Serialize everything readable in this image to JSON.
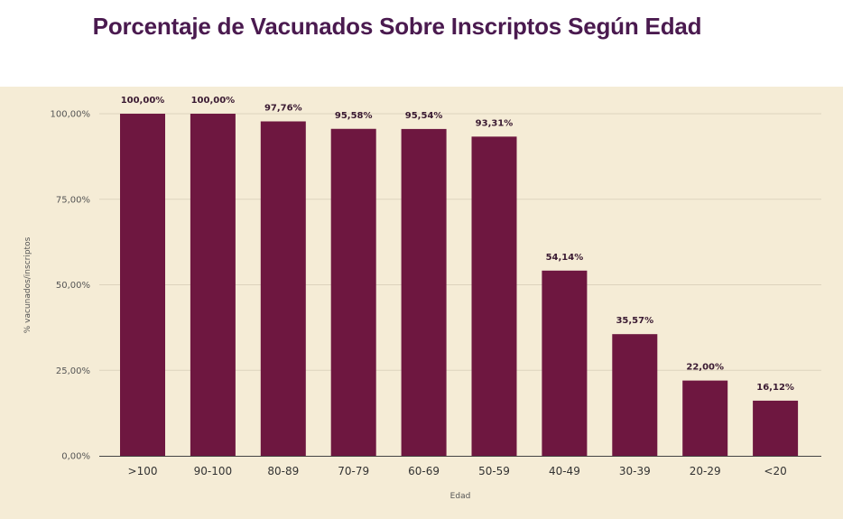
{
  "chart_data": {
    "type": "bar",
    "title": "Porcentaje de Vacunados Sobre Inscriptos Según Edad",
    "xlabel": "Edad",
    "ylabel": "% vacunados/inscriptos",
    "categories": [
      ">100",
      "90-100",
      "80-89",
      "70-79",
      "60-69",
      "50-59",
      "40-49",
      "30-39",
      "20-29",
      "<20"
    ],
    "values": [
      100.0,
      100.0,
      97.76,
      95.58,
      95.54,
      93.31,
      54.14,
      35.57,
      22.0,
      16.12
    ],
    "value_labels": [
      "100,00%",
      "100,00%",
      "97,76%",
      "95,58%",
      "95,54%",
      "93,31%",
      "54,14%",
      "35,57%",
      "22,00%",
      "16,12%"
    ],
    "yticks": [
      0,
      25,
      50,
      75,
      100
    ],
    "ytick_labels": [
      "0,00%",
      "25,00%",
      "50,00%",
      "75,00%",
      "100,00%"
    ],
    "ylim": [
      0,
      100
    ],
    "grid": true,
    "legend": "none",
    "colors": {
      "bar": "#6e1740",
      "background": "#f5ecd6",
      "title": "#4a1a4f"
    }
  }
}
